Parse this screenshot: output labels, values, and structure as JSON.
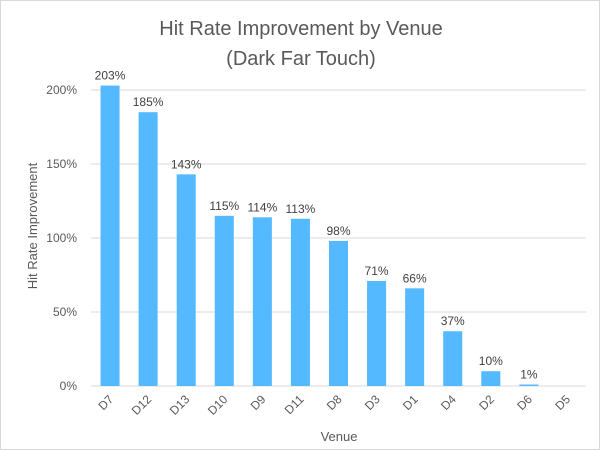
{
  "chart_data": {
    "type": "bar",
    "title": "Hit Rate Improvement by Venue",
    "subtitle": "(Dark Far Touch)",
    "xlabel": "Venue",
    "ylabel": "Hit Rate Improvement",
    "categories": [
      "D7",
      "D12",
      "D13",
      "D10",
      "D9",
      "D11",
      "D8",
      "D3",
      "D1",
      "D4",
      "D2",
      "D6",
      "D5"
    ],
    "values": [
      203,
      185,
      143,
      115,
      114,
      113,
      98,
      71,
      66,
      37,
      10,
      1,
      0
    ],
    "data_labels": [
      "203%",
      "185%",
      "143%",
      "115%",
      "114%",
      "113%",
      "98%",
      "71%",
      "66%",
      "37%",
      "10%",
      "1%",
      ""
    ],
    "ylim": [
      0,
      200
    ],
    "yticks": [
      0,
      50,
      100,
      150,
      200
    ],
    "ytick_labels": [
      "0%",
      "50%",
      "100%",
      "150%",
      "200%"
    ],
    "grid": true,
    "colors": {
      "bar": "#55b9ff",
      "grid": "#d9d9d9",
      "text": "#595959"
    }
  }
}
